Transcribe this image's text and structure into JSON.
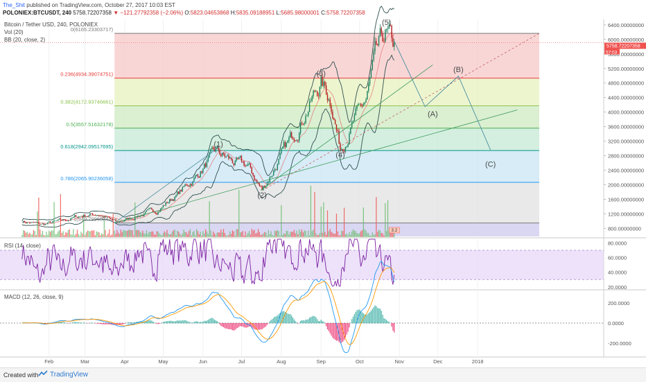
{
  "header": {
    "author": "The_Shit",
    "published": "published on TradingView.com, October 27, 2017 10:03 EST",
    "symbol": "POLONIEX:BTCUSDT, 240",
    "last": "5758.72207358",
    "change": "−121.27792358 (−2.06%)",
    "ohlc": {
      "o_label": "O:",
      "o": "5823.04653868",
      "h_label": "H:",
      "h": "5835.09188951",
      "l_label": "L:",
      "l": "5685.98000001",
      "c_label": "C:",
      "c": "5758.72207358"
    }
  },
  "legends": {
    "title": "Bitcoin / Tether USD, 240, POLONIEX",
    "vol": "Vol (20)",
    "bb": "BB (20, close, 2)",
    "rsi": "RSI (14, close)",
    "macd": "MACD (12, 26, close, 9)"
  },
  "footer": {
    "created_with": "Created with",
    "brand": "TradingView"
  },
  "colors": {
    "candle_up": "#26a69a",
    "candle_down": "#ef5350",
    "bb": "#2f4f4f",
    "rsi_line": "#7b1fa2",
    "rsi_band": "#e6d5f7",
    "macd": "#2196f3",
    "signal": "#ff9800",
    "hist_down": "#e91e63",
    "hist_up": "#26a69a"
  },
  "chart_data": [
    {
      "type": "line",
      "title": "Bitcoin / Tether USD, 240, POLONIEX",
      "x_axis_labels": [
        "Feb",
        "Mar",
        "Apr",
        "May",
        "Jun",
        "Jul",
        "Aug",
        "Sep",
        "Oct",
        "Nov",
        "Dec",
        "2018"
      ],
      "y_ticks": [
        "800.00000000",
        "1200.00000000",
        "1600.00000000",
        "2000.00000000",
        "2400.00000000",
        "2800.00000000",
        "3200.00000000",
        "3600.00000000",
        "4000.00000000",
        "4400.00000000",
        "4800.00000000",
        "5200.00000000",
        "5600.00000000",
        "6000.00000000",
        "6400.00000000"
      ],
      "y_range": [
        560,
        6550
      ],
      "last_price_label": "5758.72207358",
      "countdown_label": "57:03",
      "volume_label": "3.2",
      "series": [
        {
          "approximate_path": [
            [
              "Jan 10",
              1000
            ],
            [
              "Jan 25",
              900
            ],
            [
              "Feb 10",
              1000
            ],
            [
              "Feb 25",
              1150
            ],
            [
              "Mar 10",
              1200
            ],
            [
              "Mar 25",
              950
            ],
            [
              "Apr 10",
              1150
            ],
            [
              "Apr 25",
              1300
            ],
            [
              "May 10",
              1700
            ],
            [
              "May 25",
              2200
            ],
            [
              "Jun 10",
              2900
            ],
            [
              "Jun 25",
              2600
            ],
            [
              "Jul 5",
              2500
            ],
            [
              "Jul 16",
              1850
            ],
            [
              "Jul 28",
              2600
            ],
            [
              "Aug 10",
              3400
            ],
            [
              "Aug 20",
              4100
            ],
            [
              "Aug 31",
              4800
            ],
            [
              "Sep 8",
              4300
            ],
            [
              "Sep 15",
              3000
            ],
            [
              "Sep 25",
              3700
            ],
            [
              "Oct 5",
              4300
            ],
            [
              "Oct 12",
              5400
            ],
            [
              "Oct 20",
              6100
            ],
            [
              "Oct 27",
              5758
            ]
          ]
        }
      ],
      "fibonacci": [
        {
          "label": "0(6165.23303717)",
          "value": 6165.23,
          "color": "#787878"
        },
        {
          "label": "0.236(4934.39074751)",
          "value": 4934.39,
          "color": "#e53935"
        },
        {
          "label": "0.382(4172.93746661)",
          "value": 4172.94,
          "color": "#8bc34a"
        },
        {
          "label": "0.5(3557.51632178)",
          "value": 3557.52,
          "color": "#4caf50"
        },
        {
          "label": "0.618(2942.09517695)",
          "value": 2942.1,
          "color": "#009688"
        },
        {
          "label": "0.786(2065.90236058)",
          "value": 2065.9,
          "color": "#2196f3"
        },
        {
          "label": "1(949.79960841)",
          "value": 949.8,
          "color": "#787878"
        }
      ],
      "wave_labels": [
        {
          "label": "(1)",
          "date": "Jun 12",
          "value": 3050
        },
        {
          "label": "(2)",
          "date": "Jul 16",
          "value": 1650
        },
        {
          "label": "(3)",
          "date": "Aug 31",
          "value": 5000
        },
        {
          "label": "(4)",
          "date": "Sep 15",
          "value": 2750
        },
        {
          "label": "(5)",
          "date": "Oct 21",
          "value": 6400
        },
        {
          "label": "(A)",
          "date": "Nov 26",
          "value": 3880
        },
        {
          "label": "(B)",
          "date": "Dec 16",
          "value": 5100
        },
        {
          "label": "(C)",
          "date": "Jan 10",
          "value": 2500
        }
      ],
      "projection": [
        [
          "Oct 27",
          5950
        ],
        [
          "Nov 20",
          4150
        ],
        [
          "Dec 16",
          4990
        ],
        [
          "Jan 10",
          2960
        ]
      ]
    },
    {
      "type": "line",
      "title": "RSI (14, close)",
      "y_ticks": [
        "20.0000",
        "40.0000",
        "60.0000",
        "80.0000"
      ],
      "y_range": [
        17,
        87
      ],
      "band": [
        30,
        70
      ],
      "series": [
        {
          "seed_approximation": "oscillating between ~22 and ~85"
        }
      ]
    },
    {
      "type": "line",
      "title": "MACD (12, 26, close, 9)",
      "y_ticks": [
        "200.0000",
        "0.0000",
        "-200.0000"
      ],
      "y_range": [
        -330,
        330
      ],
      "series": [
        {
          "name": "MACD"
        },
        {
          "name": "Signal"
        },
        {
          "name": "Histogram"
        }
      ]
    }
  ]
}
